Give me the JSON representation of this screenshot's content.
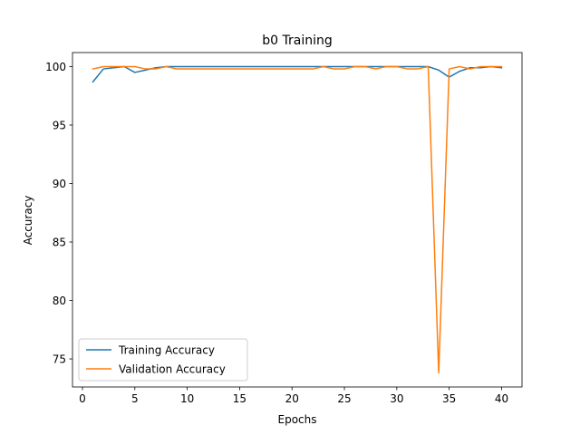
{
  "chart_data": {
    "type": "line",
    "title": "b0 Training",
    "xlabel": "Epochs",
    "ylabel": "Accuracy",
    "xlim": [
      -0.95,
      41.95
    ],
    "ylim": [
      72.6,
      101.2
    ],
    "xticks": [
      0,
      5,
      10,
      15,
      20,
      25,
      30,
      35,
      40
    ],
    "yticks": [
      75,
      80,
      85,
      90,
      95,
      100
    ],
    "grid": false,
    "legend": "lower-left",
    "x": [
      1,
      2,
      3,
      4,
      5,
      6,
      7,
      8,
      9,
      10,
      11,
      12,
      13,
      14,
      15,
      16,
      17,
      18,
      19,
      20,
      21,
      22,
      23,
      24,
      25,
      26,
      27,
      28,
      29,
      30,
      31,
      32,
      33,
      34,
      35,
      36,
      37,
      38,
      39,
      40
    ],
    "series": [
      {
        "name": "Training Accuracy",
        "color": "#1f77b4",
        "values": [
          98.7,
          99.8,
          99.9,
          100.0,
          99.5,
          99.7,
          99.9,
          100.0,
          100.0,
          100.0,
          100.0,
          100.0,
          100.0,
          100.0,
          100.0,
          100.0,
          100.0,
          100.0,
          100.0,
          100.0,
          100.0,
          100.0,
          100.0,
          100.0,
          100.0,
          100.0,
          100.0,
          100.0,
          100.0,
          100.0,
          100.0,
          100.0,
          100.0,
          99.7,
          99.1,
          99.6,
          99.9,
          99.9,
          100.0,
          99.9
        ]
      },
      {
        "name": "Validation Accuracy",
        "color": "#ff7f0e",
        "values": [
          99.8,
          100.0,
          100.0,
          100.0,
          100.0,
          99.8,
          99.8,
          100.0,
          99.8,
          99.8,
          99.8,
          99.8,
          99.8,
          99.8,
          99.8,
          99.8,
          99.8,
          99.8,
          99.8,
          99.8,
          99.8,
          99.8,
          100.0,
          99.8,
          99.8,
          100.0,
          100.0,
          99.8,
          100.0,
          100.0,
          99.8,
          99.8,
          100.0,
          73.8,
          99.8,
          100.0,
          99.8,
          100.0,
          100.0,
          100.0
        ]
      }
    ]
  }
}
